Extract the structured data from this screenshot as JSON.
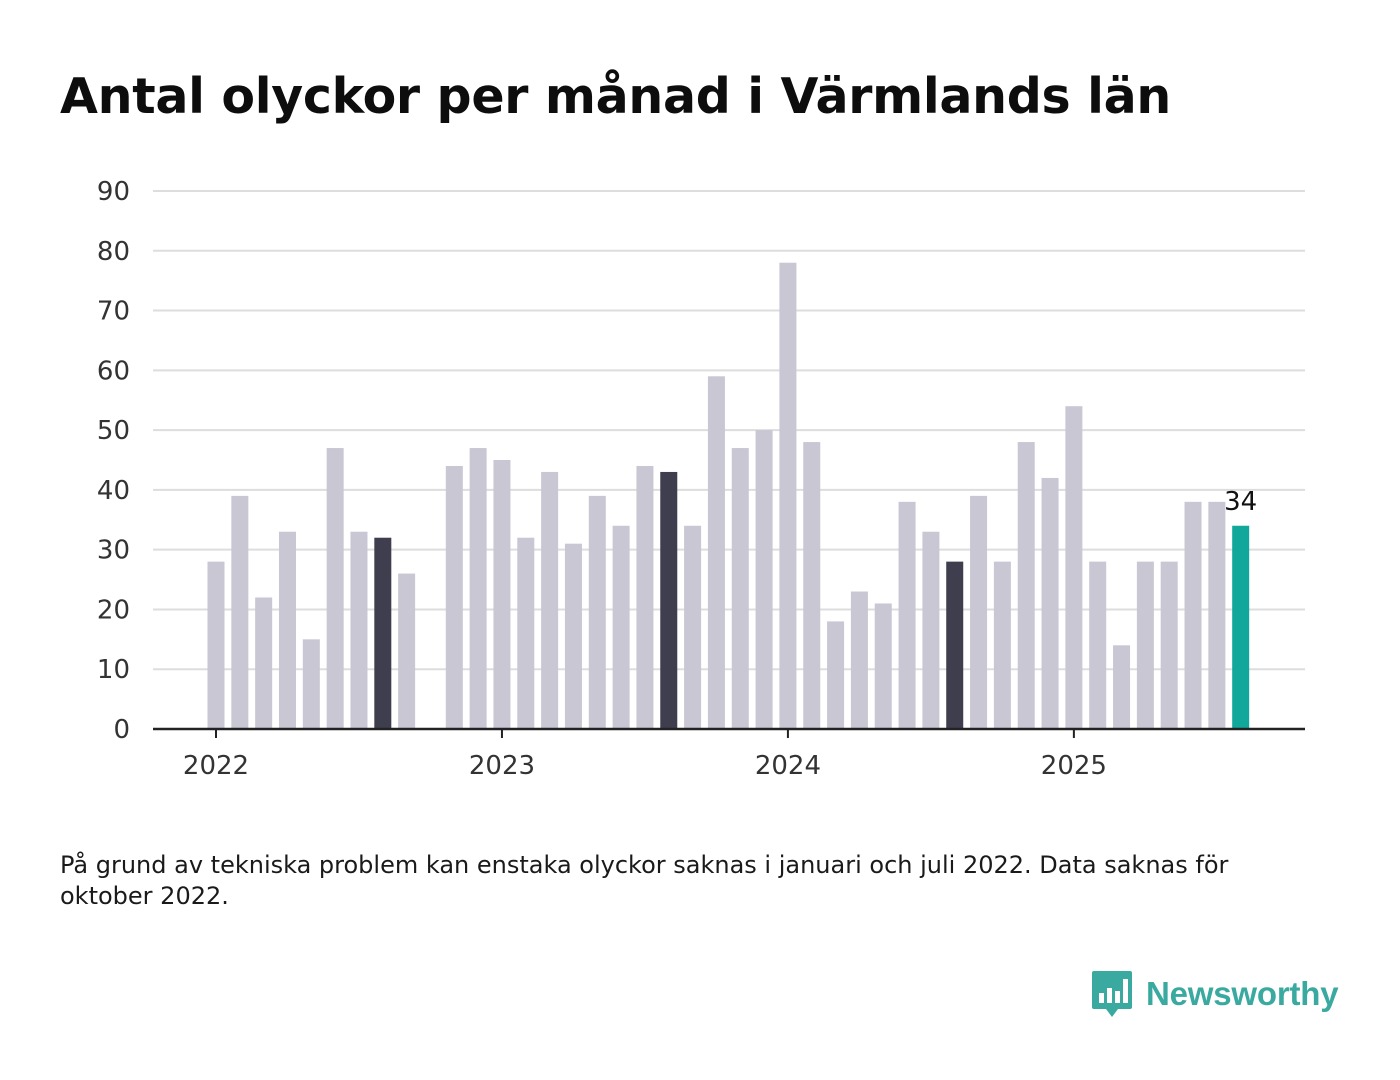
{
  "title": "Antal olyckor per månad i Värmlands län",
  "note": "På grund av tekniska problem kan enstaka olyckor saknas i januari och juli 2022. Data saknas för oktober 2022.",
  "logo": {
    "text": "Newsworthy",
    "icon": "bar-chart-speech-bubble-icon",
    "color": "#3aa99f"
  },
  "colors": {
    "default": "#c8c7d3",
    "highlight": "#3f3e4f",
    "latest": "#11a89b",
    "axis": "#222222",
    "grid": "#dddddd"
  },
  "chart_data": {
    "type": "bar",
    "ylim": [
      0,
      90
    ],
    "yticks": [
      0,
      10,
      20,
      30,
      40,
      50,
      60,
      70,
      80,
      90
    ],
    "xticks": [
      {
        "label": "2022",
        "index": 0
      },
      {
        "label": "2023",
        "index": 12
      },
      {
        "label": "2024",
        "index": 24
      },
      {
        "label": "2025",
        "index": 36
      }
    ],
    "values": [
      28,
      39,
      22,
      33,
      15,
      47,
      33,
      32,
      26,
      null,
      44,
      47,
      45,
      32,
      43,
      31,
      39,
      34,
      44,
      43,
      34,
      59,
      47,
      50,
      78,
      48,
      18,
      23,
      21,
      38,
      33,
      28,
      39,
      28,
      48,
      42,
      54,
      28,
      14,
      28,
      28,
      38,
      38,
      34
    ],
    "highlighted_indices": [
      7,
      19,
      31
    ],
    "latest_index": 43,
    "latest_label": "34",
    "grid": true
  }
}
